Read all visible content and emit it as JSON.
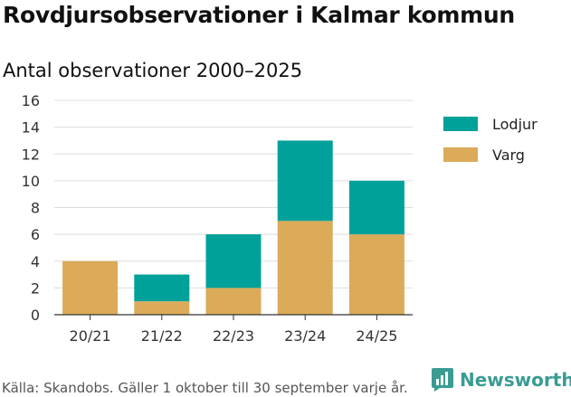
{
  "title": "Rovdjursobservationer i Kalmar kommun",
  "subtitle": "Antal observationer 2000–2025",
  "source": "Källa: Skandobs. Gäller 1 oktober till 30 september varje år.",
  "brand": "Newsworthy",
  "colors": {
    "varg": "#dbab59",
    "lodjur": "#00a19a",
    "grid": "#dddddd",
    "axis": "#333333"
  },
  "chart_data": {
    "type": "bar",
    "stacked": true,
    "title": "Antal observationer 2000–2025",
    "categories": [
      "20/21",
      "21/22",
      "22/23",
      "23/24",
      "24/25"
    ],
    "series": [
      {
        "name": "Varg",
        "values": [
          4,
          1,
          2,
          7,
          6
        ],
        "color": "#dbab59"
      },
      {
        "name": "Lodjur",
        "values": [
          0,
          2,
          4,
          6,
          4
        ],
        "color": "#00a19a"
      }
    ],
    "legend": [
      "Lodjur",
      "Varg"
    ],
    "ylim": [
      0,
      16
    ],
    "yticks": [
      0,
      2,
      4,
      6,
      8,
      10,
      12,
      14,
      16
    ],
    "xlabel": "",
    "ylabel": "",
    "grid": true,
    "legend_position": "right"
  }
}
